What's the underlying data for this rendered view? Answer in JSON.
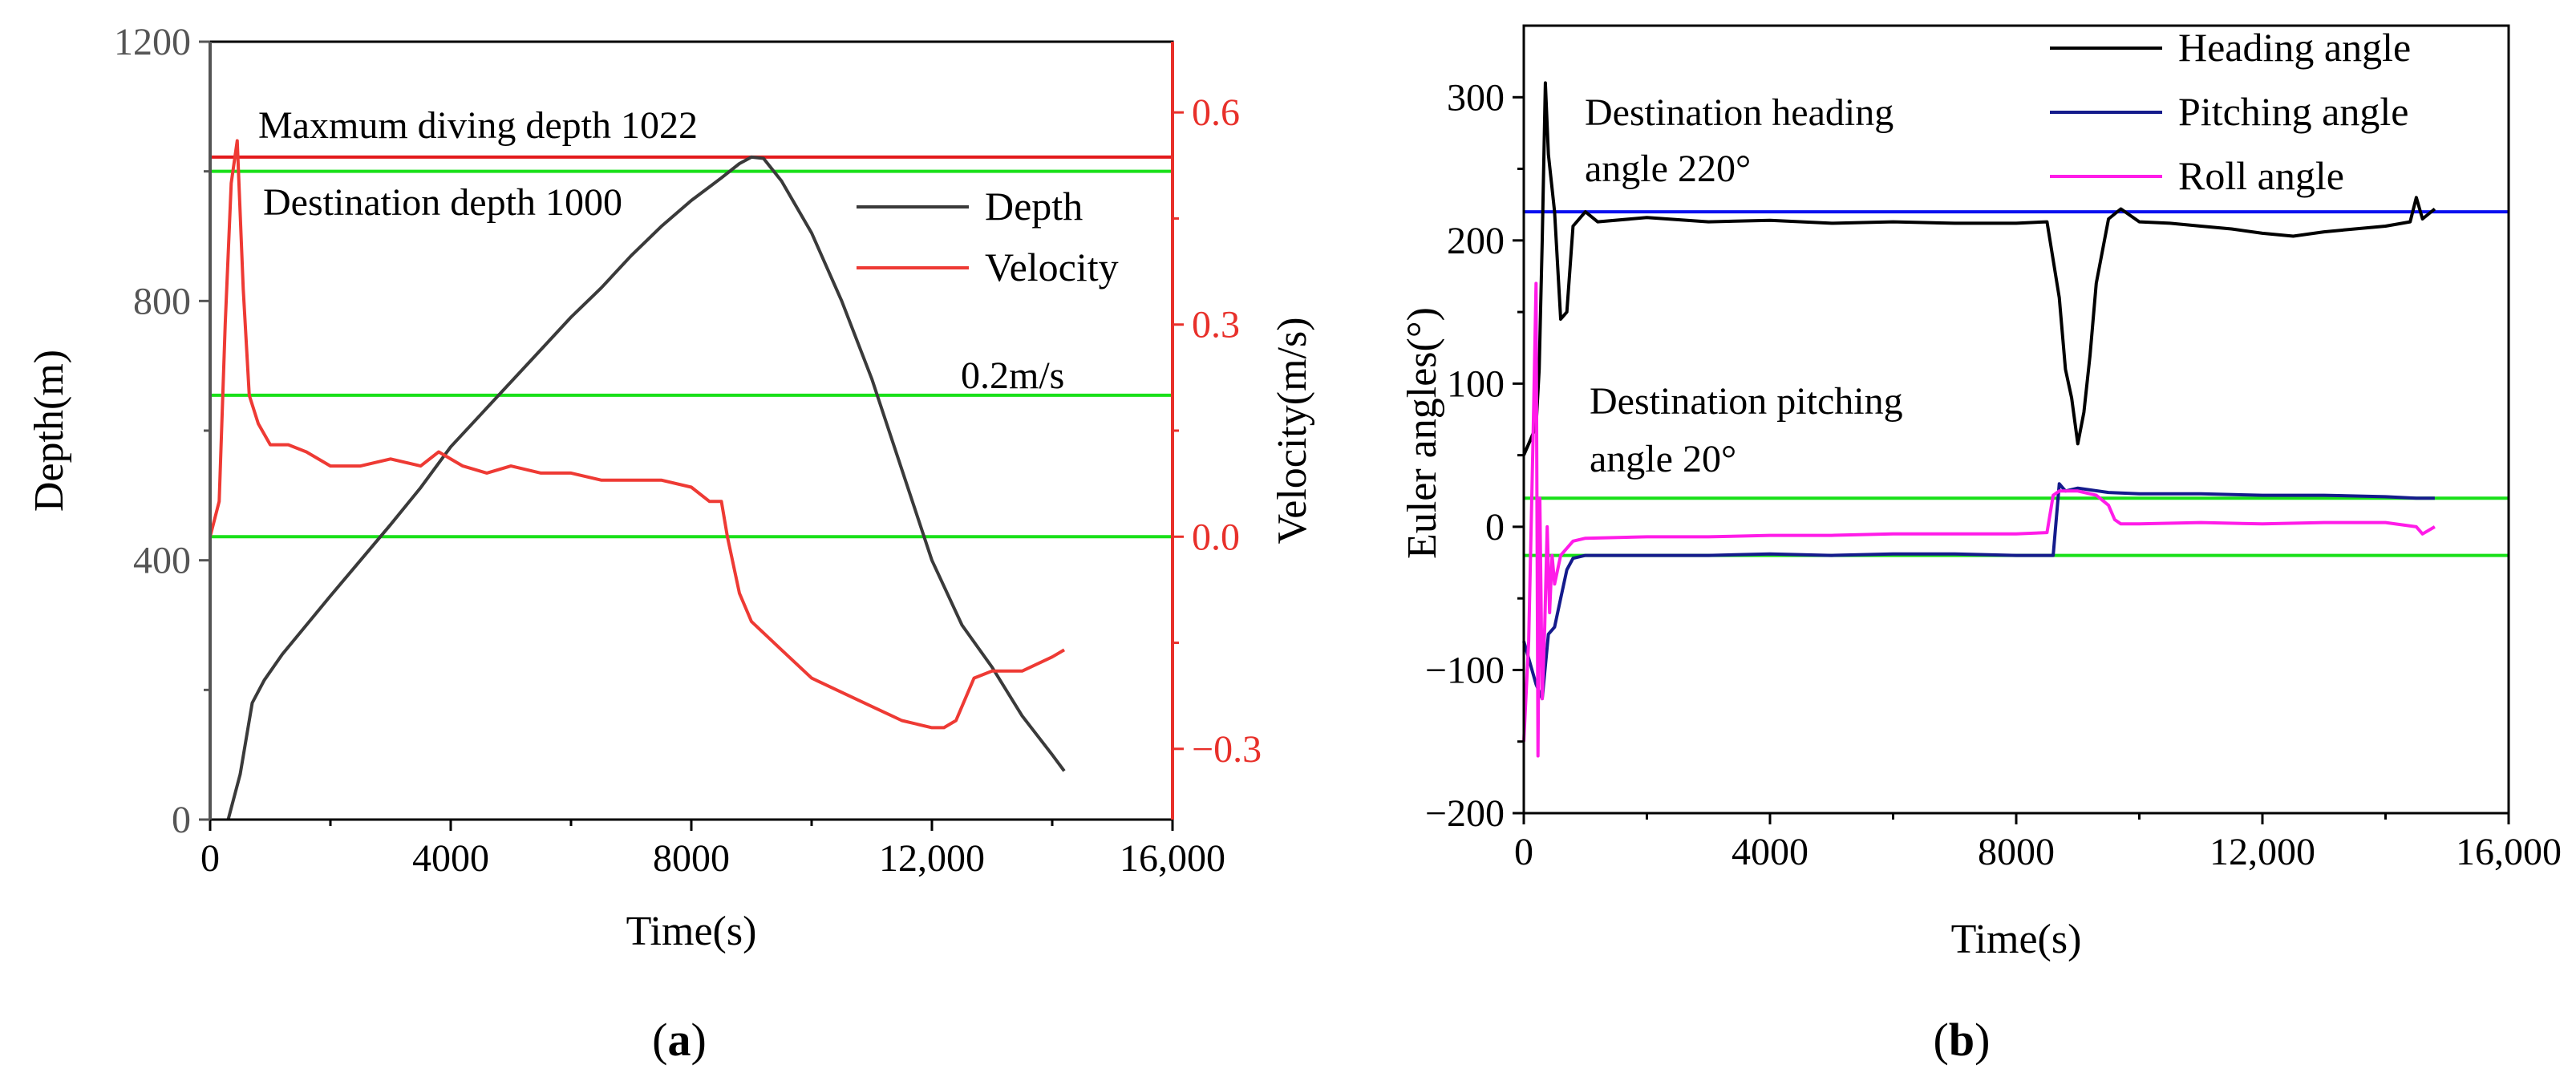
{
  "panels": {
    "a": {
      "caption": "(a)",
      "caption_open": "(",
      "caption_letter": "a",
      "caption_close": ")"
    },
    "b": {
      "caption": "(b)",
      "caption_open": "(",
      "caption_letter": "b",
      "caption_close": ")"
    }
  },
  "colors": {
    "axis": "#000000",
    "depth_axis": "#555555",
    "velocity_axis": "#e8302a",
    "depth_line": "#3a3a3a",
    "velocity_line": "#ee3a34",
    "max_depth_line": "#e31a1c",
    "green": "#19e019",
    "heading_line": "#000000",
    "heading_ref": "#0a10f0",
    "pitching_line": "#141b8c",
    "roll_line": "#ff1ce8"
  },
  "chart_data": [
    {
      "id": "a",
      "type": "line",
      "title": "",
      "xlabel": "Time(s)",
      "ylabel": "Depth(m)",
      "y2label": "Velocity(m/s)",
      "xlim": [
        0,
        16000
      ],
      "ylim": [
        0,
        1200
      ],
      "y2lim": [
        -0.4,
        0.7
      ],
      "xticks": [
        0,
        4000,
        8000,
        12000,
        16000
      ],
      "xtick_labels": [
        "0",
        "4000",
        "8000",
        "12,000",
        "16,000"
      ],
      "yticks": [
        0,
        400,
        800,
        1200
      ],
      "ytick_labels": [
        "0",
        "400",
        "800",
        "1200"
      ],
      "y2ticks": [
        -0.3,
        0.0,
        0.3,
        0.6
      ],
      "y2tick_labels": [
        "−0.3",
        "0.0",
        "0.3",
        "0.6"
      ],
      "legend": {
        "position": "top-right",
        "entries": [
          "Depth",
          "Velocity"
        ]
      },
      "series": [
        {
          "name": "Depth",
          "axis": "left",
          "x": [
            300,
            500,
            700,
            900,
            1200,
            1600,
            2000,
            2500,
            3000,
            3500,
            4000,
            4500,
            5000,
            5500,
            6000,
            6500,
            7000,
            7500,
            8000,
            8500,
            8800,
            9000,
            9200,
            9500,
            10000,
            10500,
            11000,
            11500,
            12000,
            12500,
            13000,
            13500,
            14000,
            14200
          ],
          "y": [
            0,
            70,
            180,
            215,
            255,
            300,
            345,
            400,
            455,
            512,
            575,
            625,
            675,
            725,
            775,
            820,
            870,
            915,
            955,
            990,
            1012,
            1022,
            1020,
            985,
            905,
            800,
            680,
            540,
            400,
            300,
            235,
            160,
            100,
            75
          ]
        },
        {
          "name": "Velocity",
          "axis": "right",
          "x": [
            0,
            150,
            250,
            350,
            450,
            550,
            650,
            800,
            1000,
            1300,
            1600,
            2000,
            2500,
            3000,
            3500,
            3800,
            4200,
            4600,
            5000,
            5500,
            6000,
            6500,
            7000,
            7500,
            8000,
            8300,
            8500,
            8600,
            8800,
            9000,
            9500,
            10000,
            10500,
            11000,
            11500,
            12000,
            12200,
            12400,
            12700,
            13000,
            13500,
            14000,
            14200
          ],
          "y": [
            0.0,
            0.05,
            0.3,
            0.5,
            0.56,
            0.35,
            0.2,
            0.16,
            0.13,
            0.13,
            0.12,
            0.1,
            0.1,
            0.11,
            0.1,
            0.12,
            0.1,
            0.09,
            0.1,
            0.09,
            0.09,
            0.08,
            0.08,
            0.08,
            0.07,
            0.05,
            0.05,
            0.0,
            -0.08,
            -0.12,
            -0.16,
            -0.2,
            -0.22,
            -0.24,
            -0.26,
            -0.27,
            -0.27,
            -0.26,
            -0.2,
            -0.19,
            -0.19,
            -0.17,
            -0.16
          ]
        }
      ],
      "reference_lines": [
        {
          "axis": "left",
          "value": 1022,
          "color": "red",
          "label": "Maxmum diving depth 1022"
        },
        {
          "axis": "left",
          "value": 1000,
          "color": "green",
          "label": "Destination depth 1000"
        },
        {
          "axis": "right",
          "value": 0.2,
          "color": "green",
          "label": "0.2m/s"
        },
        {
          "axis": "right",
          "value": 0.0,
          "color": "green",
          "label": ""
        }
      ]
    },
    {
      "id": "b",
      "type": "line",
      "title": "",
      "xlabel": "Time(s)",
      "ylabel": "Euler angles(°)",
      "xlim": [
        0,
        16000
      ],
      "ylim": [
        -200,
        350
      ],
      "xticks": [
        0,
        4000,
        8000,
        12000,
        16000
      ],
      "xtick_labels": [
        "0",
        "4000",
        "8000",
        "12,000",
        "16,000"
      ],
      "yticks": [
        -200,
        -100,
        0,
        100,
        200,
        300
      ],
      "ytick_labels": [
        "−200",
        "−100",
        "0",
        "100",
        "200",
        "300"
      ],
      "legend": {
        "position": "top-right",
        "entries": [
          "Heading angle",
          "Pitching angle",
          "Roll angle"
        ]
      },
      "series": [
        {
          "name": "Heading angle",
          "x": [
            0,
            100,
            200,
            250,
            300,
            350,
            400,
            500,
            600,
            700,
            800,
            1000,
            1200,
            2000,
            3000,
            4000,
            5000,
            6000,
            7000,
            8000,
            8500,
            8700,
            8800,
            8900,
            9000,
            9100,
            9200,
            9300,
            9500,
            9700,
            10000,
            10500,
            11000,
            11500,
            12000,
            12500,
            13000,
            13500,
            14000,
            14400,
            14500,
            14600,
            14800
          ],
          "y": [
            50,
            60,
            70,
            110,
            200,
            310,
            260,
            220,
            145,
            150,
            210,
            220,
            213,
            216,
            213,
            214,
            212,
            213,
            212,
            212,
            213,
            160,
            110,
            90,
            58,
            80,
            120,
            170,
            215,
            222,
            213,
            212,
            210,
            208,
            205,
            203,
            206,
            208,
            210,
            213,
            230,
            215,
            222
          ]
        },
        {
          "name": "Pitching angle",
          "x": [
            0,
            100,
            200,
            300,
            400,
            500,
            600,
            700,
            800,
            1000,
            2000,
            3000,
            4000,
            5000,
            6000,
            7000,
            8000,
            8500,
            8600,
            8700,
            8800,
            9000,
            9500,
            10000,
            11000,
            12000,
            13000,
            14000,
            14500,
            14800
          ],
          "y": [
            -80,
            -95,
            -110,
            -120,
            -75,
            -70,
            -50,
            -30,
            -22,
            -20,
            -20,
            -20,
            -19,
            -20,
            -19,
            -19,
            -20,
            -20,
            -20,
            30,
            25,
            27,
            24,
            23,
            23,
            22,
            22,
            21,
            20,
            20
          ]
        },
        {
          "name": "Roll angle",
          "x": [
            0,
            80,
            150,
            200,
            230,
            260,
            300,
            340,
            380,
            420,
            460,
            500,
            600,
            700,
            800,
            1000,
            2000,
            3000,
            4000,
            5000,
            6000,
            7000,
            8000,
            8500,
            8600,
            8700,
            9000,
            9300,
            9500,
            9600,
            9700,
            10000,
            11000,
            12000,
            13000,
            14000,
            14500,
            14600,
            14800
          ],
          "y": [
            -150,
            -80,
            60,
            170,
            -160,
            20,
            -120,
            -70,
            0,
            -60,
            -20,
            -40,
            -20,
            -15,
            -10,
            -8,
            -7,
            -7,
            -6,
            -6,
            -5,
            -5,
            -5,
            -4,
            22,
            25,
            25,
            22,
            15,
            5,
            2,
            2,
            3,
            2,
            3,
            3,
            0,
            -5,
            0
          ]
        }
      ],
      "reference_lines": [
        {
          "value": 220,
          "color": "blue",
          "label": "Destination heading angle 220°"
        },
        {
          "value": 20,
          "color": "green",
          "label": "Destination pitching angle 20°"
        },
        {
          "value": -20,
          "color": "green",
          "label": ""
        }
      ],
      "annotations": {
        "heading_line1": "Destination heading",
        "heading_line2": "angle 220°",
        "pitching_line1": "Destination pitching",
        "pitching_line2": "angle 20°"
      }
    }
  ]
}
